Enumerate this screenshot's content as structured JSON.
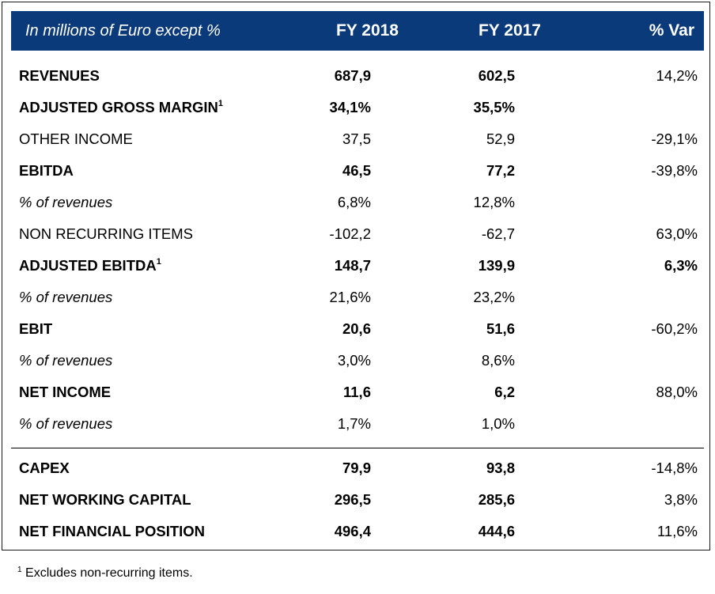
{
  "header": {
    "label": "In millions of Euro except %",
    "fy2018": "FY 2018",
    "fy2017": "FY 2017",
    "var": "% Var"
  },
  "rows": [
    {
      "label": "REVENUES",
      "sup": "",
      "fy2018": "687,9",
      "fy2017": "602,5",
      "var": "14,2%"
    },
    {
      "label": "ADJUSTED GROSS MARGIN",
      "sup": "1",
      "fy2018": "34,1%",
      "fy2017": "35,5%",
      "var": ""
    },
    {
      "label": "OTHER INCOME",
      "sup": "",
      "fy2018": "37,5",
      "fy2017": "52,9",
      "var": "-29,1%"
    },
    {
      "label": "EBITDA",
      "sup": "",
      "fy2018": "46,5",
      "fy2017": "77,2",
      "var": "-39,8%"
    },
    {
      "label": "% of revenues",
      "sup": "",
      "fy2018": "6,8%",
      "fy2017": "12,8%",
      "var": ""
    },
    {
      "label": "NON RECURRING ITEMS",
      "sup": "",
      "fy2018": "-102,2",
      "fy2017": "-62,7",
      "var": "63,0%"
    },
    {
      "label": "ADJUSTED EBITDA",
      "sup": "1",
      "fy2018": "148,7",
      "fy2017": "139,9",
      "var": "6,3%"
    },
    {
      "label": "% of revenues",
      "sup": "",
      "fy2018": "21,6%",
      "fy2017": "23,2%",
      "var": ""
    },
    {
      "label": "EBIT",
      "sup": "",
      "fy2018": "20,6",
      "fy2017": "51,6",
      "var": "-60,2%"
    },
    {
      "label": "% of revenues",
      "sup": "",
      "fy2018": "3,0%",
      "fy2017": "8,6%",
      "var": ""
    },
    {
      "label": "NET INCOME",
      "sup": "",
      "fy2018": "11,6",
      "fy2017": "6,2",
      "var": "88,0%"
    },
    {
      "label": "% of revenues",
      "sup": "",
      "fy2018": "1,7%",
      "fy2017": "1,0%",
      "var": ""
    },
    {
      "label": "CAPEX",
      "sup": "",
      "fy2018": "79,9",
      "fy2017": "93,8",
      "var": "-14,8%"
    },
    {
      "label": "NET WORKING CAPITAL",
      "sup": "",
      "fy2018": "296,5",
      "fy2017": "285,6",
      "var": "3,8%"
    },
    {
      "label": "NET FINANCIAL POSITION",
      "sup": "",
      "fy2018": "496,4",
      "fy2017": "444,6",
      "var": "11,6%"
    }
  ],
  "footnote": {
    "marker": "1",
    "text": "Excludes non-recurring items."
  }
}
